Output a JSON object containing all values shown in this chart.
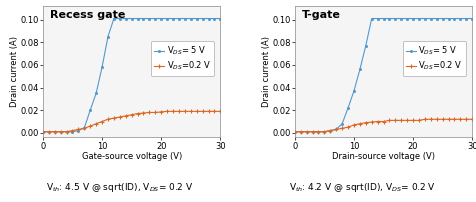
{
  "left_title": "Recess gate",
  "right_title": "T-gate",
  "left_xlabel": "Gate-source voltage (V)",
  "right_xlabel": "Drain-source voltage (V)",
  "ylabel": "Drain current (A)",
  "left_caption": "V$_{th}$: 4.5 V @ sqrt(ID), V$_{DS}$= 0.2 V",
  "right_caption": "V$_{th}$: 4.2 V @ sqrt(ID), V$_{DS}$= 0.2 V",
  "legend_vds5": "V$_{DS}$= 5 V",
  "legend_vds02": "V$_{DS}$=0.2 V",
  "color_blue": "#5599cc",
  "color_orange": "#dd6622",
  "xlim": [
    0,
    30
  ],
  "xticks": [
    0,
    10,
    20,
    30
  ],
  "ylim_left": [
    -0.004,
    0.112
  ],
  "ylim_right": [
    -0.004,
    0.112
  ],
  "yticks_left": [
    0.0,
    0.02,
    0.04,
    0.06,
    0.08,
    0.1
  ],
  "yticks_right": [
    0.0,
    0.02,
    0.04,
    0.06,
    0.08,
    0.1
  ],
  "left_vgs": [
    0,
    1,
    2,
    3,
    4,
    5,
    6,
    7,
    8,
    9,
    10,
    11,
    12,
    13,
    14,
    15,
    16,
    17,
    18,
    19,
    20,
    21,
    22,
    23,
    24,
    25,
    26,
    27,
    28,
    29,
    30
  ],
  "left_ids_5v": [
    0.001,
    0.001,
    0.001,
    0.001,
    0.001,
    0.001,
    0.002,
    0.0045,
    0.02,
    0.035,
    0.058,
    0.085,
    0.101,
    0.101,
    0.101,
    0.101,
    0.101,
    0.101,
    0.101,
    0.101,
    0.101,
    0.101,
    0.101,
    0.101,
    0.101,
    0.101,
    0.101,
    0.101,
    0.101,
    0.101,
    0.101
  ],
  "left_ids_02v": [
    0.001,
    0.001,
    0.001,
    0.001,
    0.001,
    0.002,
    0.003,
    0.004,
    0.006,
    0.008,
    0.01,
    0.012,
    0.013,
    0.014,
    0.015,
    0.016,
    0.017,
    0.0175,
    0.018,
    0.018,
    0.0185,
    0.019,
    0.019,
    0.019,
    0.019,
    0.019,
    0.019,
    0.019,
    0.019,
    0.019,
    0.019
  ],
  "right_vgs": [
    0,
    1,
    2,
    3,
    4,
    5,
    6,
    7,
    8,
    9,
    10,
    11,
    12,
    13,
    14,
    15,
    16,
    17,
    18,
    19,
    20,
    21,
    22,
    23,
    24,
    25,
    26,
    27,
    28,
    29,
    30
  ],
  "right_ids_5v": [
    0.001,
    0.001,
    0.001,
    0.001,
    0.001,
    0.001,
    0.002,
    0.003,
    0.008,
    0.022,
    0.037,
    0.056,
    0.077,
    0.101,
    0.101,
    0.101,
    0.101,
    0.101,
    0.101,
    0.101,
    0.101,
    0.101,
    0.101,
    0.101,
    0.101,
    0.101,
    0.101,
    0.101,
    0.101,
    0.101,
    0.101
  ],
  "right_ids_02v": [
    0.001,
    0.001,
    0.001,
    0.001,
    0.001,
    0.001,
    0.002,
    0.003,
    0.004,
    0.005,
    0.007,
    0.008,
    0.009,
    0.0095,
    0.01,
    0.01,
    0.011,
    0.011,
    0.011,
    0.011,
    0.011,
    0.011,
    0.012,
    0.012,
    0.012,
    0.012,
    0.012,
    0.012,
    0.012,
    0.012,
    0.012
  ],
  "bg_color": "#f5f5f5",
  "title_fontsize": 8,
  "label_fontsize": 6,
  "tick_fontsize": 6,
  "legend_fontsize": 6,
  "caption_fontsize": 6.5
}
